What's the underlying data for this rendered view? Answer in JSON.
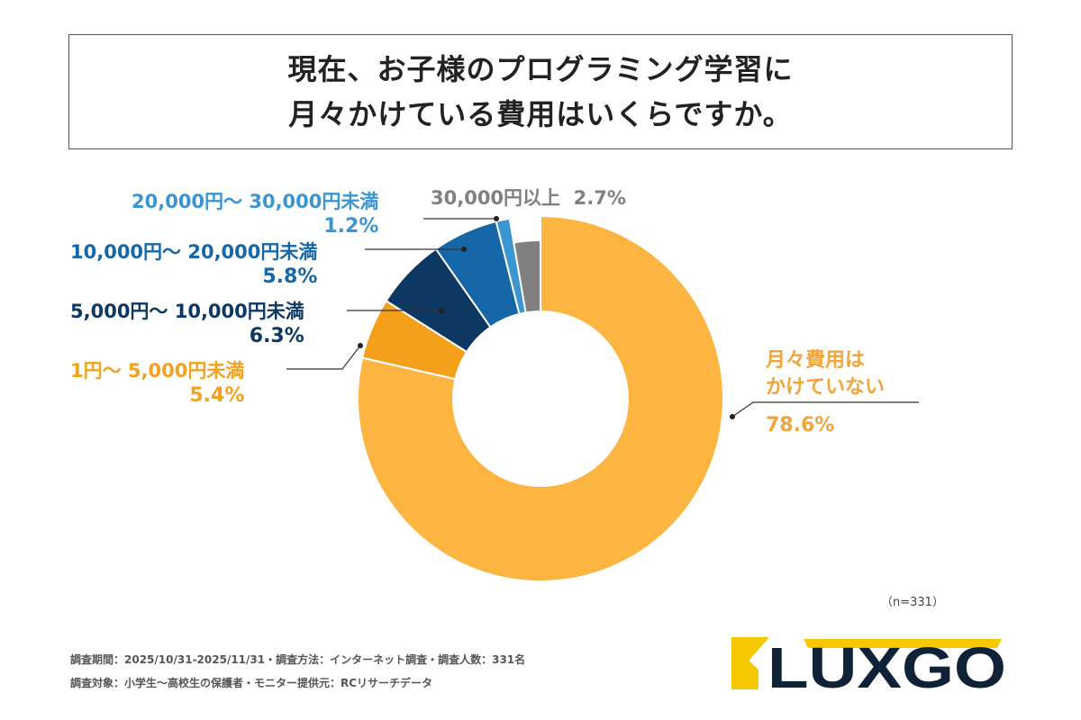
{
  "title": {
    "line1": "現在、お子様のプログラミング学習に",
    "line2": "月々かけている費用はいくらですか。"
  },
  "chart_data": {
    "type": "pie",
    "donut": true,
    "start": "top, clockwise",
    "slices": [
      {
        "label": "月々費用はかけていない",
        "label_lines": [
          "月々費用は",
          "かけていない"
        ],
        "value": 78.6,
        "display": "78.6%",
        "color": "#FBB540"
      },
      {
        "label": "1円〜 5,000円未満",
        "value": 5.4,
        "display": "5.4%",
        "color": "#F5A01A"
      },
      {
        "label": "5,000円〜 10,000円未満",
        "value": 6.3,
        "display": "6.3%",
        "color": "#0D3862"
      },
      {
        "label": "10,000円〜 20,000円未満",
        "value": 5.8,
        "display": "5.8%",
        "color": "#1667A8"
      },
      {
        "label": "20,000円〜 30,000円未満",
        "value": 1.2,
        "display": "1.2%",
        "color": "#3A95D0"
      },
      {
        "label": "30,000円以上",
        "value": 2.7,
        "display": "2.7%",
        "color": "#808080"
      }
    ],
    "label_colors": [
      "#F2A53A",
      "#F2A21F",
      "#0D3862",
      "#1667A8",
      "#3A95D0",
      "#808080"
    ]
  },
  "sample": "（n=331）",
  "footer": {
    "line1": "調査期間：2025/10/31-2025/11/31・調査方法：インターネット調査・調査人数：331名",
    "line2": "調査対象：小学生〜高校生の保護者・モニター提供元：RCリサーチデータ"
  },
  "logo": {
    "text": "LUXGO",
    "colors": {
      "yellow": "#F6C800",
      "navy": "#0F2238"
    }
  }
}
